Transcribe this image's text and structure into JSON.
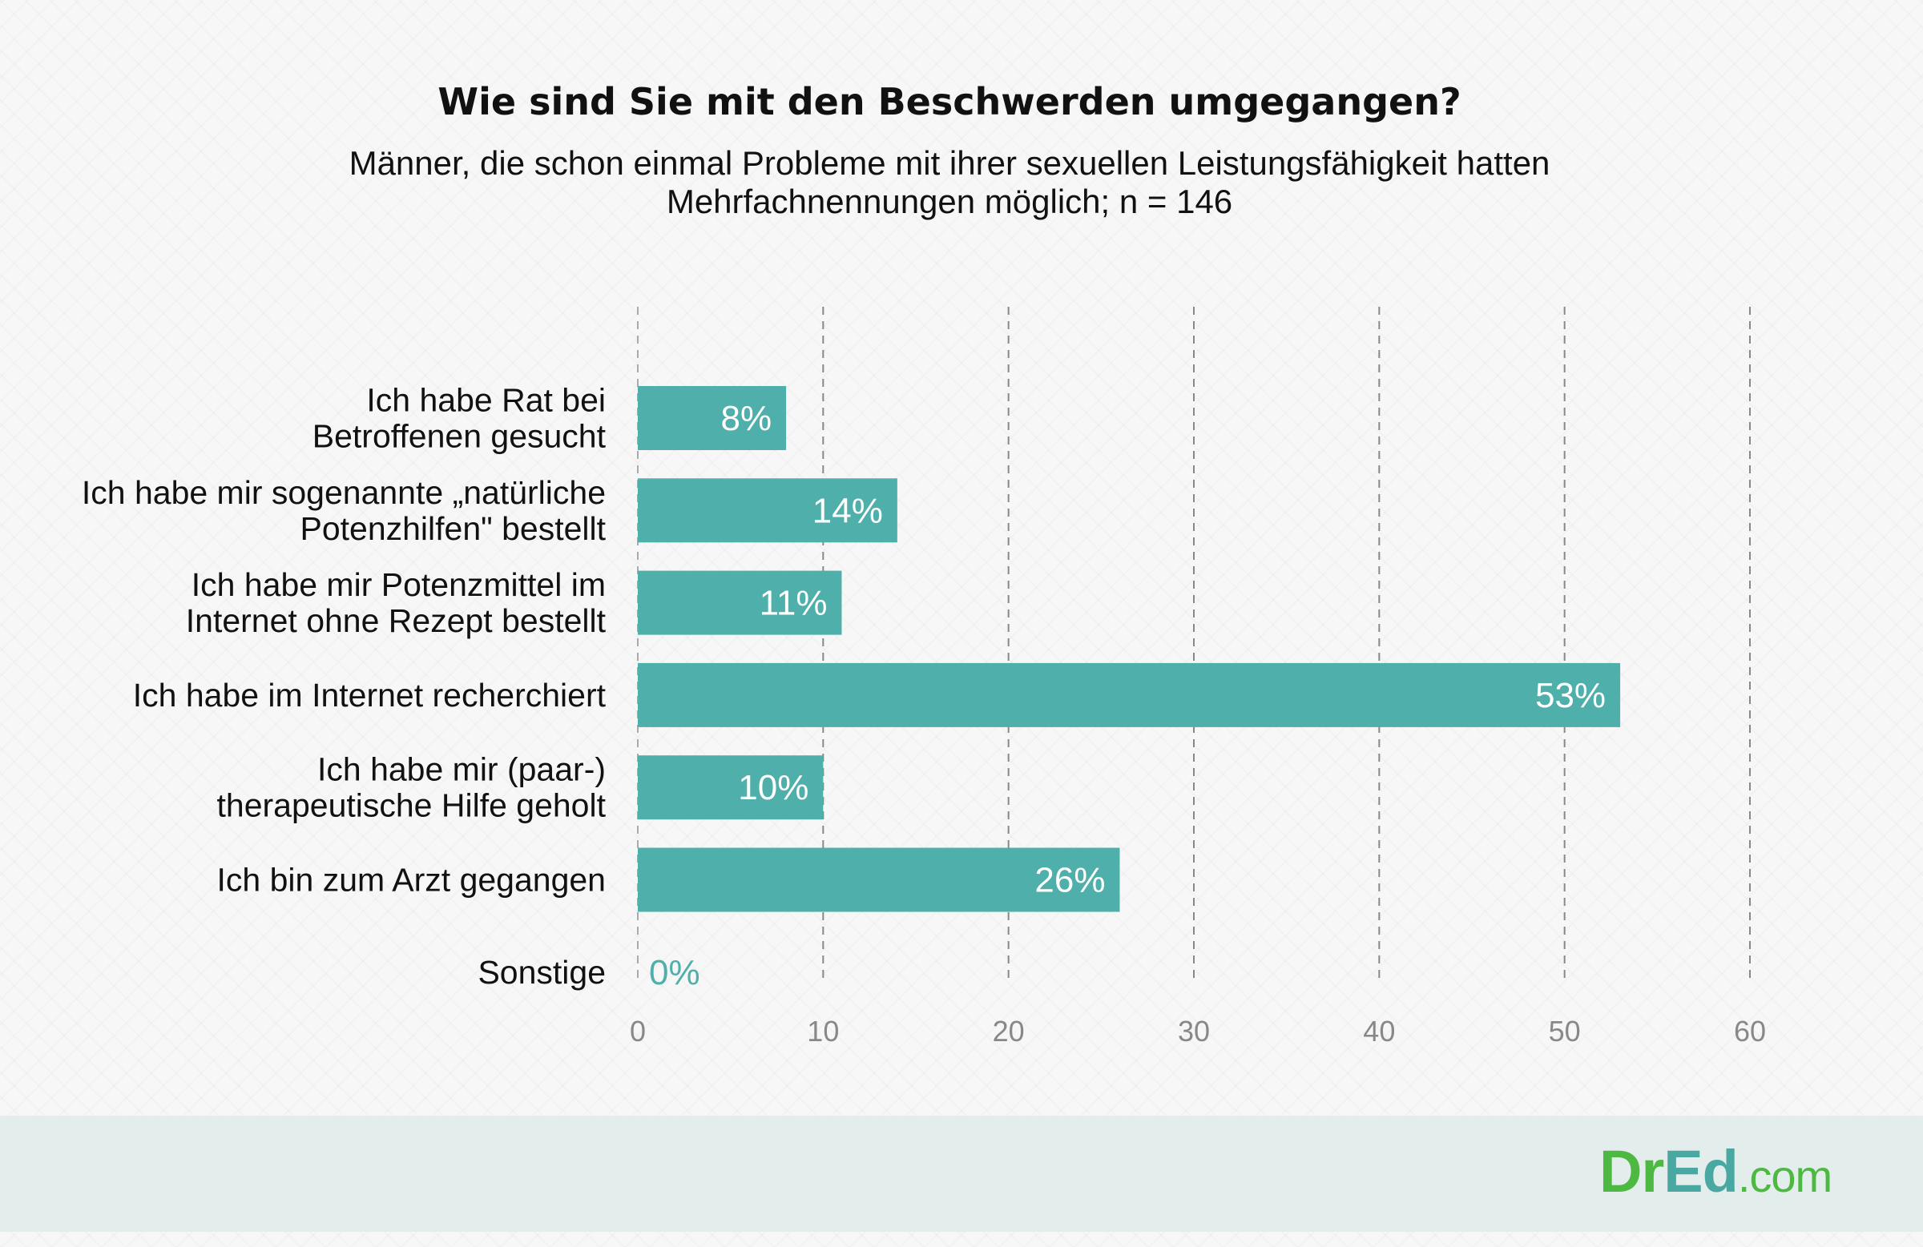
{
  "chart_data": {
    "type": "bar",
    "orientation": "horizontal",
    "title": "Wie sind Sie mit den Beschwerden umgegangen?",
    "subtitle": [
      "Männer, die schon einmal Probleme mit ihrer sexuellen Leistungsfähigkeit hatten",
      "Mehrfachnennungen möglich; n = 146"
    ],
    "categories": [
      [
        "Ich habe Rat bei",
        "Betroffenen gesucht"
      ],
      [
        "Ich habe mir sogenannte „natürliche",
        "Potenzhilfen\" bestellt"
      ],
      [
        "Ich habe mir Potenzmittel im",
        "Internet ohne Rezept bestellt"
      ],
      [
        "Ich habe im Internet recherchiert"
      ],
      [
        "Ich habe mir (paar-)",
        "therapeutische Hilfe geholt"
      ],
      [
        "Ich bin zum Arzt gegangen"
      ],
      [
        "Sonstige"
      ]
    ],
    "values": [
      8,
      14,
      11,
      53,
      10,
      26,
      0
    ],
    "data_labels": [
      "8%",
      "14%",
      "11%",
      "53%",
      "10%",
      "26%",
      "0%"
    ],
    "xlim": [
      0,
      60
    ],
    "xticks": [
      "0",
      "10",
      "20",
      "30",
      "40",
      "50",
      "60"
    ],
    "grid": "vertical dashed",
    "bar_color": "#4fafaa"
  },
  "logo": {
    "dr": "Dr",
    "ed": "Ed",
    "com": ".com"
  }
}
